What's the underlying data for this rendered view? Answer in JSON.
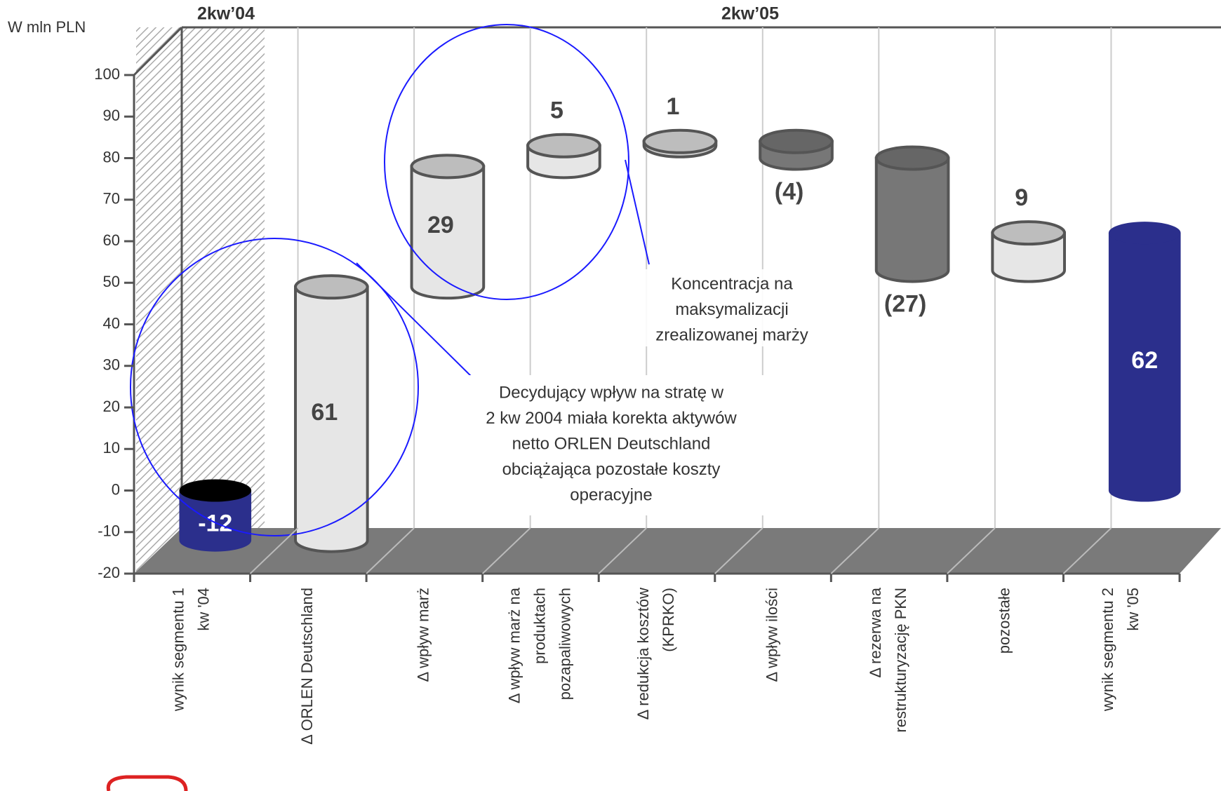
{
  "chart_data": {
    "type": "waterfall",
    "y_label": "W mln PLN",
    "period_labels": [
      "2kw’04",
      "2kw’05"
    ],
    "categories": [
      [
        "wynik segmentu 1",
        "kw '04"
      ],
      [
        "Δ ORLEN Deutschland"
      ],
      [
        "Δ wpływ marż"
      ],
      [
        "Δ wpływ marż na",
        "produktach",
        "pozapaliwowych"
      ],
      [
        "Δ redukcja kosztów",
        "(KPRKO)"
      ],
      [
        "Δ wpływ ilości"
      ],
      [
        "Δ rezerwa na",
        "restrukturyzację PKN"
      ],
      [
        "pozostałe"
      ],
      [
        "wynik segmentu 2",
        "kw '05"
      ]
    ],
    "values": [
      -12,
      61,
      29,
      5,
      1,
      -4,
      -27,
      9,
      62
    ],
    "value_labels": [
      "-12",
      "61",
      "29",
      "5",
      "1",
      "(4)",
      "(27)",
      "9",
      "62"
    ],
    "colors": [
      "#2b2f8c",
      "#e6e6e6",
      "#e6e6e6",
      "#e6e6e6",
      "#cfcfcf",
      "#777777",
      "#777777",
      "#e6e6e6",
      "#2b2f8c"
    ],
    "ylim": [
      -20,
      100
    ],
    "yticks": [
      -20,
      -10,
      0,
      10,
      20,
      30,
      40,
      50,
      60,
      70,
      80,
      90,
      100
    ],
    "annotations": [
      [
        "Koncentracja na",
        "maksymalizacji",
        "zrealizowanej marży"
      ],
      [
        "Decydujący wpływ na stratę w",
        "2 kw 2004 miała korekta aktywów",
        "netto ORLEN Deutschland",
        "obciążająca pozostałe koszty",
        "operacyjne"
      ]
    ]
  }
}
